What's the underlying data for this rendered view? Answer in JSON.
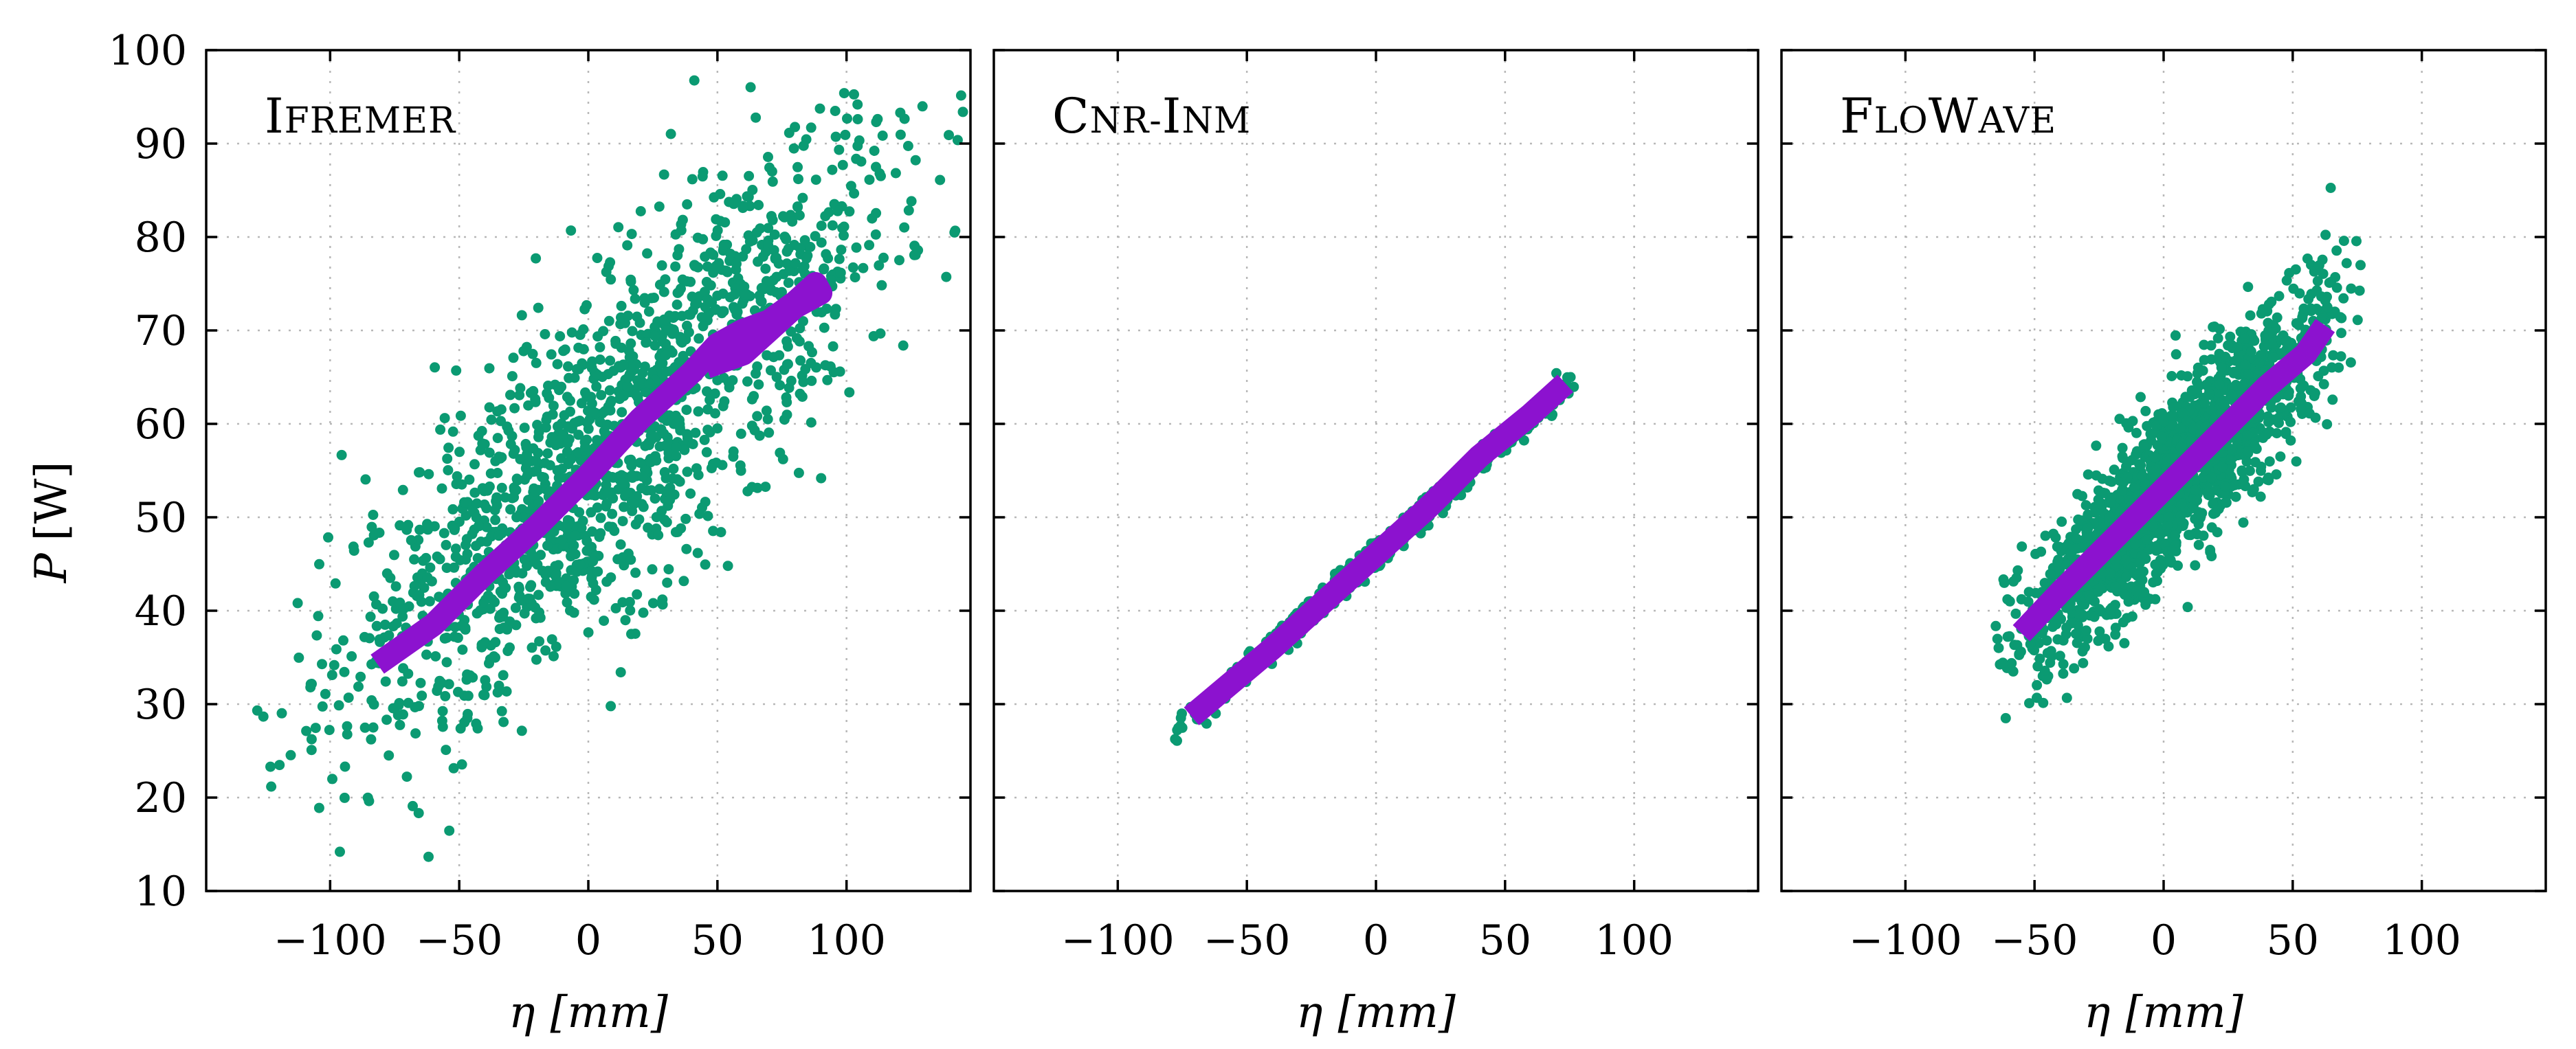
{
  "chart_data": [
    {
      "type": "scatter",
      "title": "Ifremer",
      "xlabel": "η [mm]",
      "ylabel": "P [W]",
      "xlim": [
        -148,
        148
      ],
      "ylim": [
        10,
        100
      ],
      "xticks": [
        -100,
        -50,
        0,
        50,
        100
      ],
      "yticks": [
        10,
        20,
        30,
        40,
        50,
        60,
        70,
        80,
        90,
        100
      ],
      "grid": true,
      "colors": {
        "points": "#0b9a72",
        "trend": "#8c12cf"
      },
      "scatter_cloud": {
        "x_center": 10,
        "x_spread": 55,
        "slope": 0.25,
        "intercept": 56,
        "noise": 9,
        "x_min": -135,
        "x_max": 148,
        "count": 1600
      },
      "trend_x": [
        -78,
        -60,
        -40,
        -20,
        0,
        20,
        40,
        50,
        60,
        70,
        80,
        88,
        90,
        80,
        70,
        60,
        50
      ],
      "trend_y": [
        35,
        38.5,
        44,
        49,
        54.5,
        60.5,
        65.5,
        68.5,
        70,
        71,
        73,
        75,
        74,
        72.5,
        70,
        67.5,
        66.5
      ]
    },
    {
      "type": "scatter",
      "title": "Cnr-Inm",
      "xlabel": "η [mm]",
      "ylabel": "",
      "xlim": [
        -148,
        148
      ],
      "ylim": [
        10,
        100
      ],
      "xticks": [
        -100,
        -50,
        0,
        50,
        100
      ],
      "yticks": [
        10,
        20,
        30,
        40,
        50,
        60,
        70,
        80,
        90,
        100
      ],
      "grid": true,
      "colors": {
        "points": "#0b9a72",
        "trend": "#8c12cf"
      },
      "scatter_cloud": {
        "x_center": 0,
        "x_spread": 36,
        "slope": 0.245,
        "intercept": 46,
        "noise": 0.7,
        "x_min": -78,
        "x_max": 80,
        "count": 1000
      },
      "trend_x": [
        -68,
        -40,
        -20,
        0,
        20,
        40,
        60,
        70
      ],
      "trend_y": [
        29.5,
        36,
        41,
        46,
        51,
        56.5,
        61,
        63.5
      ]
    },
    {
      "type": "scatter",
      "title": "FloWave",
      "xlabel": "η [mm]",
      "ylabel": "",
      "xlim": [
        -148,
        148
      ],
      "ylim": [
        10,
        100
      ],
      "xticks": [
        -100,
        -50,
        0,
        50,
        100
      ],
      "yticks": [
        10,
        20,
        30,
        40,
        50,
        60,
        70,
        80,
        90,
        100
      ],
      "grid": true,
      "colors": {
        "points": "#0b9a72",
        "trend": "#8c12cf"
      },
      "scatter_cloud": {
        "x_center": 5,
        "x_spread": 32,
        "slope": 0.28,
        "intercept": 53,
        "noise": 4.5,
        "x_min": -68,
        "x_max": 78,
        "count": 1800
      },
      "trend_x": [
        -52,
        -40,
        -20,
        0,
        20,
        40,
        55,
        60
      ],
      "trend_y": [
        38.5,
        42,
        47.5,
        53,
        58.5,
        64,
        67.5,
        69.5
      ]
    }
  ],
  "panels": [
    {
      "title_cap": "I",
      "title_rest": "FREMER"
    },
    {
      "title_cap": "C",
      "title_rest": "NR-",
      "title_cap2": "I",
      "title_rest2": "NM"
    },
    {
      "title_cap": "F",
      "title_rest": "LO",
      "title_cap2": "W",
      "title_rest2": "AVE"
    }
  ],
  "axes": {
    "ylabel_main": "P",
    "ylabel_unit": "[W]",
    "xlabel_main": "η",
    "xlabel_unit": "[mm]"
  }
}
